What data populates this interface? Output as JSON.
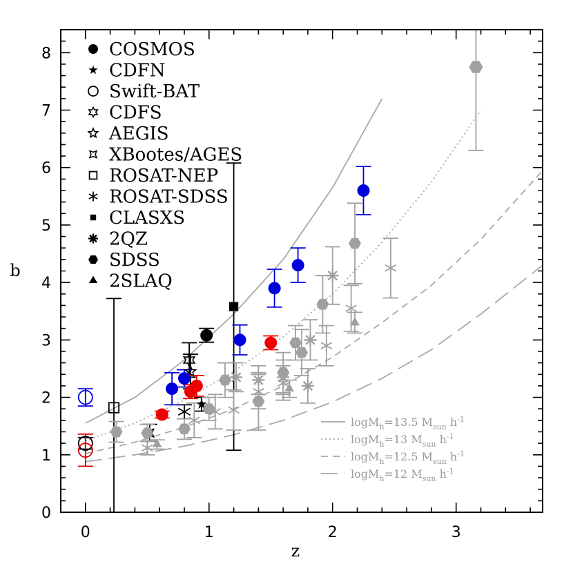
{
  "chart_data": {
    "type": "scatter",
    "title": "",
    "xlabel": "z",
    "ylabel": "b",
    "xlim": [
      -0.2,
      3.7
    ],
    "ylim": [
      0,
      8.4
    ],
    "xticks": [
      "0",
      "1",
      "2",
      "3"
    ],
    "yticks": [
      "0",
      "1",
      "2",
      "3",
      "4",
      "5",
      "6",
      "7",
      "8"
    ],
    "grid": false,
    "legend_position": "top-left",
    "legend": [
      {
        "label": "COSMOS",
        "marker": "filled-circle"
      },
      {
        "label": "CDFN",
        "marker": "star5-filled"
      },
      {
        "label": "Swift-BAT",
        "marker": "open-circle"
      },
      {
        "label": "CDFS",
        "marker": "star6-open"
      },
      {
        "label": "AEGIS",
        "marker": "star5-open"
      },
      {
        "label": "XBootes/AGES",
        "marker": "star4-open"
      },
      {
        "label": "ROSAT-NEP",
        "marker": "open-square"
      },
      {
        "label": "ROSAT-SDSS",
        "marker": "asterisk"
      },
      {
        "label": "CLASXS",
        "marker": "filled-square"
      },
      {
        "label": "2QZ",
        "marker": "burst"
      },
      {
        "label": "SDSS",
        "marker": "filled-hexagon"
      },
      {
        "label": "2SLAQ",
        "marker": "filled-triangle"
      }
    ],
    "model_legend": [
      {
        "text": "logM",
        "sub": "h",
        "rest": "=13.5 M",
        "sub2": "sun",
        "tail": " h",
        "sup": "-1",
        "dash": "solid"
      },
      {
        "text": "logM",
        "sub": "h",
        "rest": "=13 M",
        "sub2": "sun",
        "tail": " h",
        "sup": "-1",
        "dash": "dotted"
      },
      {
        "text": "logM",
        "sub": "h",
        "rest": "=12.5 M",
        "sub2": "sun",
        "tail": " h",
        "sup": "-1",
        "dash": "dashed"
      },
      {
        "text": "logM",
        "sub": "h",
        "rest": "=12 M",
        "sub2": "sun",
        "tail": " h",
        "sup": "-1",
        "dash": "longdash"
      }
    ],
    "models": [
      {
        "name": "logMh=13.5",
        "dash": "solid",
        "x": [
          0,
          0.4,
          0.8,
          1.2,
          1.6,
          2.0,
          2.4
        ],
        "y": [
          1.55,
          2.0,
          2.65,
          3.45,
          4.4,
          5.65,
          7.2
        ]
      },
      {
        "name": "logMh=13",
        "dash": "dotted",
        "x": [
          0,
          0.4,
          0.8,
          1.2,
          1.6,
          2.0,
          2.4,
          2.8,
          3.2
        ],
        "y": [
          1.25,
          1.55,
          1.95,
          2.45,
          3.05,
          3.8,
          4.7,
          5.75,
          7.0
        ]
      },
      {
        "name": "logMh=12.5",
        "dash": "dashed",
        "x": [
          0,
          0.4,
          0.8,
          1.2,
          1.6,
          2.0,
          2.4,
          2.8,
          3.2,
          3.7
        ],
        "y": [
          1.02,
          1.22,
          1.48,
          1.8,
          2.2,
          2.7,
          3.3,
          3.95,
          4.75,
          5.95
        ]
      },
      {
        "name": "logMh=12",
        "dash": "longdash",
        "x": [
          0,
          0.4,
          0.8,
          1.2,
          1.6,
          2.0,
          2.4,
          2.8,
          3.2,
          3.7
        ],
        "y": [
          0.88,
          1.0,
          1.15,
          1.35,
          1.6,
          1.92,
          2.33,
          2.83,
          3.45,
          4.3
        ]
      }
    ],
    "points": [
      {
        "x": 0.98,
        "y": 3.08,
        "err": 0.12,
        "marker": "filled-circle",
        "color": "#000000",
        "size": 9
      },
      {
        "x": 0.94,
        "y": 1.88,
        "err": 0.12,
        "marker": "star5-filled",
        "color": "#000000",
        "size": 8
      },
      {
        "x": 0.0,
        "y": 1.2,
        "err": 0.1,
        "marker": "open-circle",
        "color": "#000000",
        "size": 10
      },
      {
        "x": 0.84,
        "y": 2.65,
        "err": 0.3,
        "marker": "star6-open",
        "color": "#000000",
        "size": 9
      },
      {
        "x": 0.85,
        "y": 2.45,
        "err": 0.3,
        "marker": "star5-open",
        "color": "#000000",
        "size": 8
      },
      {
        "x": 0.52,
        "y": 1.38,
        "err": 0.15,
        "marker": "star4-open",
        "color": "#000000",
        "size": 8
      },
      {
        "x": 0.23,
        "y": 1.82,
        "err": 1.9,
        "marker": "open-square",
        "color": "#000000",
        "size": 12
      },
      {
        "x": 0.8,
        "y": 1.75,
        "err": 0.12,
        "marker": "asterisk",
        "color": "#000000",
        "size": 10
      },
      {
        "x": 1.2,
        "y": 3.58,
        "err": 2.5,
        "marker": "filled-square",
        "color": "#000000",
        "size": 11
      },
      {
        "x": 0.0,
        "y": 2.0,
        "err": 0.15,
        "marker": "open-circle",
        "color": "#0000dd",
        "size": 10
      },
      {
        "x": 0.0,
        "y": 1.08,
        "err": 0.28,
        "marker": "open-circle",
        "color": "#dd0000",
        "size": 10
      },
      {
        "x": 0.7,
        "y": 2.15,
        "err": 0.28,
        "marker": "filled-circle",
        "color": "#0000dd",
        "size": 9
      },
      {
        "x": 0.8,
        "y": 2.33,
        "err": 0.15,
        "marker": "filled-circle",
        "color": "#0000dd",
        "size": 9
      },
      {
        "x": 1.25,
        "y": 3.0,
        "err": 0.26,
        "marker": "filled-circle",
        "color": "#0000dd",
        "size": 9
      },
      {
        "x": 1.53,
        "y": 3.9,
        "err": 0.33,
        "marker": "filled-circle",
        "color": "#0000dd",
        "size": 9
      },
      {
        "x": 1.72,
        "y": 4.3,
        "err": 0.3,
        "marker": "filled-circle",
        "color": "#0000dd",
        "size": 9
      },
      {
        "x": 2.25,
        "y": 5.6,
        "err": 0.42,
        "marker": "filled-circle",
        "color": "#0000dd",
        "size": 9
      },
      {
        "x": 0.62,
        "y": 1.7,
        "err": 0.06,
        "marker": "filled-circle",
        "color": "#ee0000",
        "size": 9
      },
      {
        "x": 0.85,
        "y": 2.1,
        "err": 0.12,
        "marker": "filled-circle",
        "color": "#ee0000",
        "size": 9
      },
      {
        "x": 0.9,
        "y": 2.2,
        "err": 0.18,
        "marker": "filled-circle",
        "color": "#ee0000",
        "size": 9
      },
      {
        "x": 1.5,
        "y": 2.95,
        "err": 0.12,
        "marker": "filled-circle",
        "color": "#ee0000",
        "size": 9
      },
      {
        "x": 0.5,
        "y": 1.12,
        "err": 0.12,
        "marker": "asterisk",
        "color": "#a0a0a0",
        "size": 9
      },
      {
        "x": 0.88,
        "y": 1.6,
        "err": 0.3,
        "marker": "asterisk",
        "color": "#a0a0a0",
        "size": 9
      },
      {
        "x": 1.05,
        "y": 1.75,
        "err": 0.3,
        "marker": "asterisk",
        "color": "#a0a0a0",
        "size": 9
      },
      {
        "x": 1.2,
        "y": 1.78,
        "err": 0.35,
        "marker": "asterisk",
        "color": "#a0a0a0",
        "size": 9
      },
      {
        "x": 1.4,
        "y": 2.1,
        "err": 0.3,
        "marker": "asterisk",
        "color": "#a0a0a0",
        "size": 9
      },
      {
        "x": 1.6,
        "y": 2.25,
        "err": 0.3,
        "marker": "asterisk",
        "color": "#a0a0a0",
        "size": 9
      },
      {
        "x": 1.95,
        "y": 2.9,
        "err": 0.35,
        "marker": "asterisk",
        "color": "#a0a0a0",
        "size": 9
      },
      {
        "x": 2.15,
        "y": 3.55,
        "err": 0.4,
        "marker": "asterisk",
        "color": "#a0a0a0",
        "size": 9
      },
      {
        "x": 2.47,
        "y": 4.25,
        "err": 0.52,
        "marker": "asterisk",
        "color": "#a0a0a0",
        "size": 9
      },
      {
        "x": 1.22,
        "y": 2.35,
        "err": 0.25,
        "marker": "burst",
        "color": "#a0a0a0",
        "size": 9
      },
      {
        "x": 1.4,
        "y": 2.3,
        "err": 0.25,
        "marker": "burst",
        "color": "#a0a0a0",
        "size": 9
      },
      {
        "x": 1.6,
        "y": 2.35,
        "err": 0.3,
        "marker": "burst",
        "color": "#a0a0a0",
        "size": 9
      },
      {
        "x": 1.8,
        "y": 2.2,
        "err": 0.3,
        "marker": "burst",
        "color": "#a0a0a0",
        "size": 9
      },
      {
        "x": 1.82,
        "y": 3.0,
        "err": 0.35,
        "marker": "burst",
        "color": "#a0a0a0",
        "size": 9
      },
      {
        "x": 2.0,
        "y": 4.12,
        "err": 0.5,
        "marker": "burst",
        "color": "#a0a0a0",
        "size": 9
      },
      {
        "x": 0.25,
        "y": 1.4,
        "err": 0.18,
        "marker": "filled-hexagon",
        "color": "#a0a0a0",
        "size": 9
      },
      {
        "x": 0.5,
        "y": 1.38,
        "err": 0.15,
        "marker": "filled-hexagon",
        "color": "#a0a0a0",
        "size": 9
      },
      {
        "x": 0.8,
        "y": 1.45,
        "err": 0.18,
        "marker": "filled-hexagon",
        "color": "#a0a0a0",
        "size": 9
      },
      {
        "x": 1.0,
        "y": 1.8,
        "err": 0.2,
        "marker": "filled-hexagon",
        "color": "#a0a0a0",
        "size": 9
      },
      {
        "x": 1.13,
        "y": 2.3,
        "err": 0.3,
        "marker": "filled-hexagon",
        "color": "#a0a0a0",
        "size": 9
      },
      {
        "x": 1.4,
        "y": 1.93,
        "err": 0.5,
        "marker": "filled-hexagon",
        "color": "#a0a0a0",
        "size": 9
      },
      {
        "x": 1.6,
        "y": 2.43,
        "err": 0.35,
        "marker": "filled-hexagon",
        "color": "#a0a0a0",
        "size": 9
      },
      {
        "x": 1.7,
        "y": 2.95,
        "err": 0.3,
        "marker": "filled-hexagon",
        "color": "#a0a0a0",
        "size": 9
      },
      {
        "x": 1.75,
        "y": 2.78,
        "err": 0.4,
        "marker": "filled-hexagon",
        "color": "#a0a0a0",
        "size": 9
      },
      {
        "x": 1.92,
        "y": 3.62,
        "err": 0.5,
        "marker": "filled-hexagon",
        "color": "#a0a0a0",
        "size": 9
      },
      {
        "x": 2.18,
        "y": 4.68,
        "err": 0.7,
        "marker": "filled-hexagon",
        "color": "#a0a0a0",
        "size": 9
      },
      {
        "x": 3.16,
        "y": 7.75,
        "err": 1.45,
        "marker": "filled-hexagon",
        "color": "#a0a0a0",
        "size": 10
      },
      {
        "x": 0.58,
        "y": 1.18,
        "err": 0.08,
        "marker": "filled-triangle",
        "color": "#a0a0a0",
        "size": 8
      },
      {
        "x": 1.65,
        "y": 2.15,
        "err": 0.15,
        "marker": "filled-triangle",
        "color": "#a0a0a0",
        "size": 8
      },
      {
        "x": 2.18,
        "y": 3.3,
        "err": 0.18,
        "marker": "filled-triangle",
        "color": "#a0a0a0",
        "size": 8
      }
    ]
  }
}
